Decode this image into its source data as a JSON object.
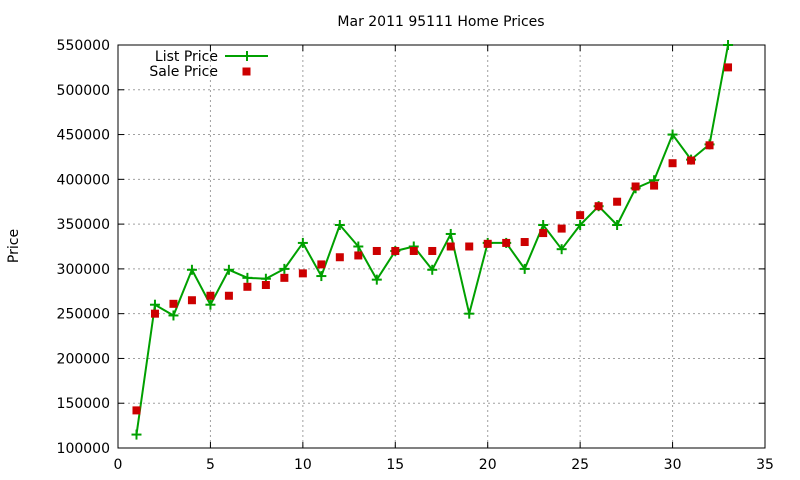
{
  "chart_data": {
    "type": "line",
    "title": "Mar 2011 95111 Home Prices",
    "xlabel": "",
    "ylabel": "Price",
    "xlim": [
      0,
      35
    ],
    "ylim": [
      100000,
      550000
    ],
    "x_ticks": [
      0,
      5,
      10,
      15,
      20,
      25,
      30,
      35
    ],
    "y_ticks": [
      100000,
      150000,
      200000,
      250000,
      300000,
      350000,
      400000,
      450000,
      500000,
      550000
    ],
    "x_tick_labels": [
      "0",
      "5",
      "10",
      "15",
      "20",
      "25",
      "30",
      "35"
    ],
    "y_tick_labels": [
      "100000",
      "150000",
      "200000",
      "250000",
      "300000",
      "350000",
      "400000",
      "450000",
      "500000",
      "550000"
    ],
    "grid": true,
    "legend": "top-left",
    "x": [
      1,
      2,
      3,
      4,
      5,
      6,
      7,
      8,
      9,
      10,
      11,
      12,
      13,
      14,
      15,
      16,
      17,
      18,
      19,
      20,
      21,
      22,
      23,
      24,
      25,
      26,
      27,
      28,
      29,
      30,
      31,
      32,
      33
    ],
    "series": [
      {
        "name": "List Price",
        "style": "line+cross",
        "color": "#00a000",
        "values": [
          115000,
          260000,
          248000,
          299000,
          260000,
          299000,
          290000,
          289000,
          300000,
          329000,
          292000,
          349000,
          325000,
          288000,
          320000,
          325000,
          299000,
          339000,
          250000,
          329000,
          329000,
          300000,
          349000,
          322000,
          349000,
          370000,
          349000,
          390000,
          399000,
          450000,
          422000,
          439000,
          550000
        ]
      },
      {
        "name": "Sale Price",
        "style": "square-points",
        "color": "#cc0000",
        "values": [
          142000,
          250000,
          261000,
          265000,
          270000,
          270000,
          280000,
          282000,
          290000,
          295000,
          305000,
          313000,
          315000,
          320000,
          320000,
          320000,
          320000,
          325000,
          325000,
          328000,
          329000,
          330000,
          340000,
          345000,
          360000,
          370000,
          375000,
          392000,
          393000,
          418000,
          421000,
          438000,
          525000
        ]
      }
    ]
  }
}
